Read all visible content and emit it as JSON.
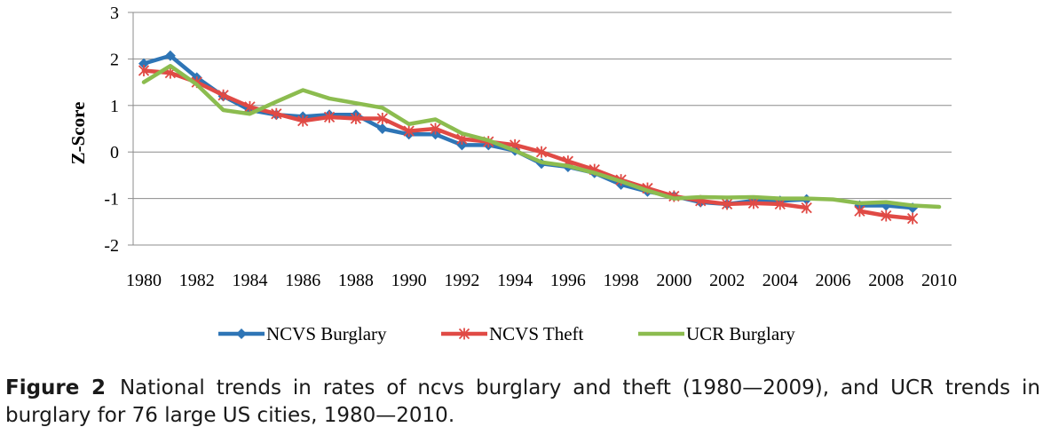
{
  "chart_data": {
    "type": "line",
    "title": "",
    "xlabel": "",
    "ylabel": "Z-Score",
    "ylim": [
      -2,
      3
    ],
    "xlim": [
      1980,
      2010
    ],
    "x_ticks": [
      "1980",
      "1982",
      "1984",
      "1986",
      "1988",
      "1990",
      "1992",
      "1994",
      "1996",
      "1998",
      "2000",
      "2002",
      "2004",
      "2006",
      "2008",
      "2010"
    ],
    "y_ticks": [
      "3",
      "2",
      "1",
      "0",
      "-1",
      "-2"
    ],
    "grid": "horizontal",
    "legend_position": "bottom",
    "series": [
      {
        "name": "NCVS Burglary",
        "color": "#2e75b6",
        "marker": "diamond",
        "x": [
          1980,
          1981,
          1982,
          1983,
          1984,
          1985,
          1986,
          1987,
          1988,
          1989,
          1990,
          1991,
          1992,
          1993,
          1994,
          1995,
          1996,
          1997,
          1998,
          1999,
          2000,
          2001,
          2002,
          2003,
          2004,
          2005,
          2007,
          2008,
          2009
        ],
        "y": [
          1.9,
          2.07,
          1.6,
          1.2,
          0.9,
          0.8,
          0.76,
          0.8,
          0.8,
          0.5,
          0.38,
          0.38,
          0.15,
          0.15,
          0.03,
          -0.25,
          -0.32,
          -0.45,
          -0.7,
          -0.85,
          -0.95,
          -1.08,
          -1.12,
          -1.05,
          -1.05,
          -1.02,
          -1.15,
          -1.15,
          -1.2
        ]
      },
      {
        "name": "NCVS Theft",
        "color": "#e04a45",
        "marker": "asterisk",
        "x": [
          1980,
          1981,
          1982,
          1983,
          1984,
          1985,
          1986,
          1987,
          1988,
          1989,
          1990,
          1991,
          1992,
          1993,
          1994,
          1995,
          1996,
          1997,
          1998,
          1999,
          2000,
          2001,
          2002,
          2003,
          2004,
          2005,
          2007,
          2008,
          2009
        ],
        "y": [
          1.75,
          1.7,
          1.5,
          1.22,
          0.97,
          0.82,
          0.67,
          0.75,
          0.72,
          0.72,
          0.45,
          0.5,
          0.28,
          0.22,
          0.15,
          0.0,
          -0.2,
          -0.38,
          -0.6,
          -0.78,
          -0.95,
          -1.05,
          -1.12,
          -1.1,
          -1.12,
          -1.2,
          -1.27,
          -1.37,
          -1.43
        ]
      },
      {
        "name": "UCR Burglary",
        "color": "#8cbc4f",
        "marker": "none",
        "x": [
          1980,
          1981,
          1982,
          1983,
          1984,
          1985,
          1986,
          1987,
          1988,
          1989,
          1990,
          1991,
          1992,
          1993,
          1994,
          1995,
          1996,
          1997,
          1998,
          1999,
          2000,
          2001,
          2002,
          2003,
          2004,
          2005,
          2006,
          2007,
          2008,
          2009,
          2010
        ],
        "y": [
          1.5,
          1.85,
          1.45,
          0.9,
          0.82,
          1.08,
          1.33,
          1.15,
          1.05,
          0.95,
          0.6,
          0.7,
          0.4,
          0.25,
          0.03,
          -0.22,
          -0.3,
          -0.45,
          -0.63,
          -0.83,
          -1.0,
          -0.97,
          -0.98,
          -0.97,
          -1.0,
          -1.0,
          -1.02,
          -1.1,
          -1.08,
          -1.15,
          -1.18
        ]
      }
    ]
  },
  "caption": {
    "label": "Figure 2",
    "text": "National trends in rates of ncvs burglary and theft (1980—2009), and UCR trends in burglary for 76 large US cities, 1980—2010."
  }
}
